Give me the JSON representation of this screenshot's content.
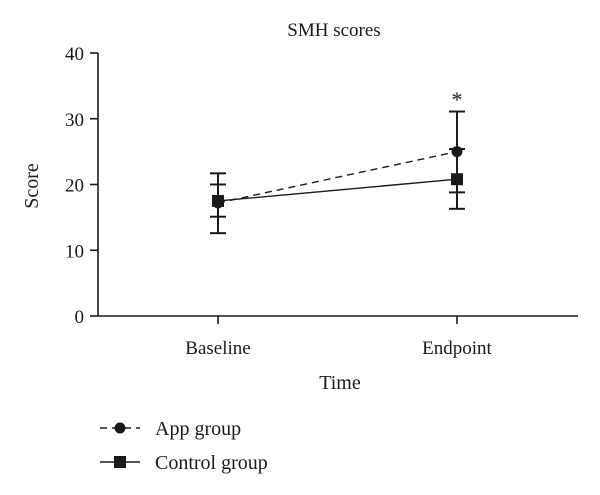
{
  "chart_data": {
    "type": "line",
    "title": "SMH scores",
    "xlabel": "Time",
    "ylabel": "Score",
    "categories": [
      "Baseline",
      "Endpoint"
    ],
    "ylim": [
      0,
      40
    ],
    "yticks": [
      0,
      10,
      20,
      30,
      40
    ],
    "grid": false,
    "legend_position": "bottom-left",
    "series": [
      {
        "name": "App group",
        "marker": "circle",
        "line_style": "dashed",
        "values": [
          17.2,
          25.0
        ],
        "error_upper": [
          21.7,
          31.1
        ],
        "error_lower": [
          12.6,
          18.8
        ]
      },
      {
        "name": "Control group",
        "marker": "square",
        "line_style": "solid",
        "values": [
          17.5,
          20.8
        ],
        "error_upper": [
          20.0,
          25.4
        ],
        "error_lower": [
          15.1,
          16.3
        ]
      }
    ],
    "annotations": [
      {
        "text": "*",
        "category": "Endpoint",
        "y": 33.0
      }
    ]
  }
}
